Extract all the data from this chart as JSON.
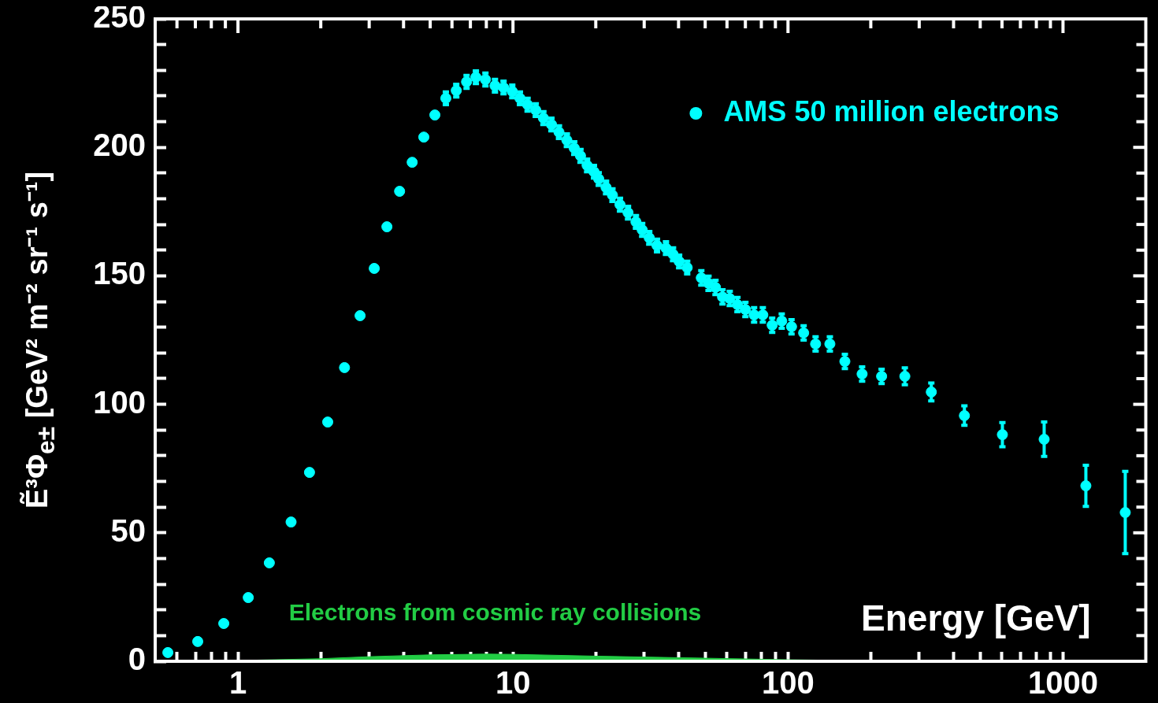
{
  "chart_data": {
    "type": "scatter",
    "xlabel": "Energy [GeV]",
    "ylabel": "Ẽ³Φ$_{e±}$ [GeV² m⁻² sr⁻¹ s⁻¹]",
    "log": "x",
    "legend": "top right",
    "marker": "circle",
    "xlim": [
      0.5,
      2000
    ],
    "ylim": [
      0,
      250
    ],
    "xticks": [
      {
        "value": 0.6,
        "label": null
      },
      {
        "value": 0.7,
        "label": null
      },
      {
        "value": 0.8,
        "label": null
      },
      {
        "value": 0.9,
        "label": null
      },
      1,
      {
        "value": 2,
        "label": null
      },
      {
        "value": 3,
        "label": null
      },
      {
        "value": 4,
        "label": null
      },
      {
        "value": 5,
        "label": null
      },
      {
        "value": 6,
        "label": null
      },
      {
        "value": 7,
        "label": null
      },
      {
        "value": 8,
        "label": null
      },
      {
        "value": 9,
        "label": null
      },
      10,
      {
        "value": 20,
        "label": null
      },
      {
        "value": 30,
        "label": null
      },
      {
        "value": 40,
        "label": null
      },
      {
        "value": 50,
        "label": null
      },
      {
        "value": 60,
        "label": null
      },
      {
        "value": 70,
        "label": null
      },
      {
        "value": 80,
        "label": null
      },
      {
        "value": 90,
        "label": null
      },
      100,
      {
        "value": 200,
        "label": null
      },
      {
        "value": 300,
        "label": null
      },
      {
        "value": 400,
        "label": null
      },
      {
        "value": 500,
        "label": null
      },
      {
        "value": 600,
        "label": null
      },
      {
        "value": 700,
        "label": null
      },
      {
        "value": 800,
        "label": null
      },
      {
        "value": 900,
        "label": null
      },
      1000
    ],
    "yticks": [
      0,
      {
        "value": 10,
        "label": null
      },
      {
        "value": 20,
        "label": null
      },
      {
        "value": 30,
        "label": null
      },
      {
        "value": 40,
        "label": null
      },
      50,
      {
        "value": 60,
        "label": null
      },
      {
        "value": 70,
        "label": null
      },
      {
        "value": 80,
        "label": null
      },
      {
        "value": 90,
        "label": null
      },
      100,
      {
        "value": 110,
        "label": null
      },
      {
        "value": 120,
        "label": null
      },
      {
        "value": 130,
        "label": null
      },
      {
        "value": 140,
        "label": null
      },
      150,
      {
        "value": 160,
        "label": null
      },
      {
        "value": 170,
        "label": null
      },
      {
        "value": 180,
        "label": null
      },
      {
        "value": 190,
        "label": null
      },
      200,
      {
        "value": 210,
        "label": null
      },
      {
        "value": 220,
        "label": null
      },
      {
        "value": 230,
        "label": null
      },
      {
        "value": 240,
        "label": null
      },
      250
    ],
    "series": [
      {
        "name": "Electrons from cosmic ray collisions",
        "type": "area",
        "marker": "none",
        "color": "#22cc44",
        "x": [
          1,
          2,
          3,
          5,
          8,
          10,
          20,
          50,
          100,
          200
        ],
        "values": [
          0.3,
          1.0,
          1.8,
          2.5,
          2.8,
          2.7,
          2.0,
          1.2,
          0.6,
          0.2
        ]
      },
      {
        "name": "AMS 50 million electrons",
        "type": "scatter",
        "color": "#00ffff",
        "x": [
          0.556,
          0.714,
          0.888,
          1.09,
          1.3,
          1.56,
          1.82,
          2.12,
          2.44,
          2.78,
          3.13,
          3.48,
          3.87,
          4.3,
          4.74,
          5.2,
          5.7,
          6.22,
          6.78,
          7.33,
          7.94,
          8.6,
          9.24,
          9.94,
          10.6,
          11.3,
          12.1,
          12.9,
          13.8,
          14.7,
          15.7,
          16.7,
          17.6,
          18.6,
          19.7,
          20.5,
          21.8,
          23.0,
          24.5,
          26.2,
          28.0,
          29.5,
          31.3,
          33.4,
          36.0,
          38.2,
          40.2,
          43.0,
          48.4,
          51.4,
          54.5,
          57.8,
          61.4,
          65.5,
          70.0,
          75.3,
          81.0,
          87.6,
          94.9,
          103,
          114,
          126,
          142,
          161,
          186,
          219,
          266,
          332,
          438,
          602,
          854,
          1211,
          1684
        ],
        "values": [
          3.4,
          7.7,
          14.7,
          24.8,
          38.3,
          54.2,
          73.5,
          93.1,
          114.3,
          134.5,
          152.9,
          169.1,
          182.9,
          194.2,
          204.0,
          212.6,
          219.1,
          222.1,
          225.5,
          227.3,
          226.4,
          224.0,
          223.3,
          221.8,
          219.1,
          216.6,
          214.5,
          211.4,
          208.9,
          205.9,
          202.8,
          199.7,
          196.7,
          193.0,
          190.5,
          187.7,
          184.4,
          181.4,
          177.7,
          174.6,
          171.0,
          167.9,
          164.8,
          161.8,
          160.8,
          158.4,
          155.6,
          153.2,
          149.2,
          147.1,
          145.5,
          141.8,
          141.2,
          138.8,
          136.9,
          134.8,
          134.8,
          130.8,
          132.4,
          130.2,
          127.8,
          123.5,
          123.5,
          116.7,
          111.8,
          110.9,
          110.9,
          104.8,
          95.6,
          88.2,
          86.4,
          68.3,
          57.9
        ],
        "errors": [
          null,
          null,
          null,
          null,
          null,
          null,
          null,
          null,
          null,
          null,
          null,
          null,
          null,
          null,
          null,
          null,
          2.5,
          2.5,
          2.5,
          2.5,
          2.5,
          2.5,
          2.5,
          2.5,
          2.5,
          2.5,
          2.5,
          2.5,
          2.5,
          2.5,
          2.5,
          2.5,
          2.5,
          2.5,
          2.5,
          2.5,
          2.5,
          2.5,
          2.5,
          2.5,
          2.5,
          2.5,
          2.5,
          2.5,
          2.5,
          2.5,
          2.5,
          2.5,
          2.8,
          2.8,
          2.8,
          2.8,
          2.8,
          2.8,
          2.8,
          2.8,
          2.8,
          2.8,
          2.8,
          2.8,
          2.8,
          2.8,
          2.8,
          2.8,
          2.8,
          2.8,
          3.3,
          3.5,
          3.8,
          4.7,
          6.7,
          8,
          16
        ]
      }
    ]
  }
}
